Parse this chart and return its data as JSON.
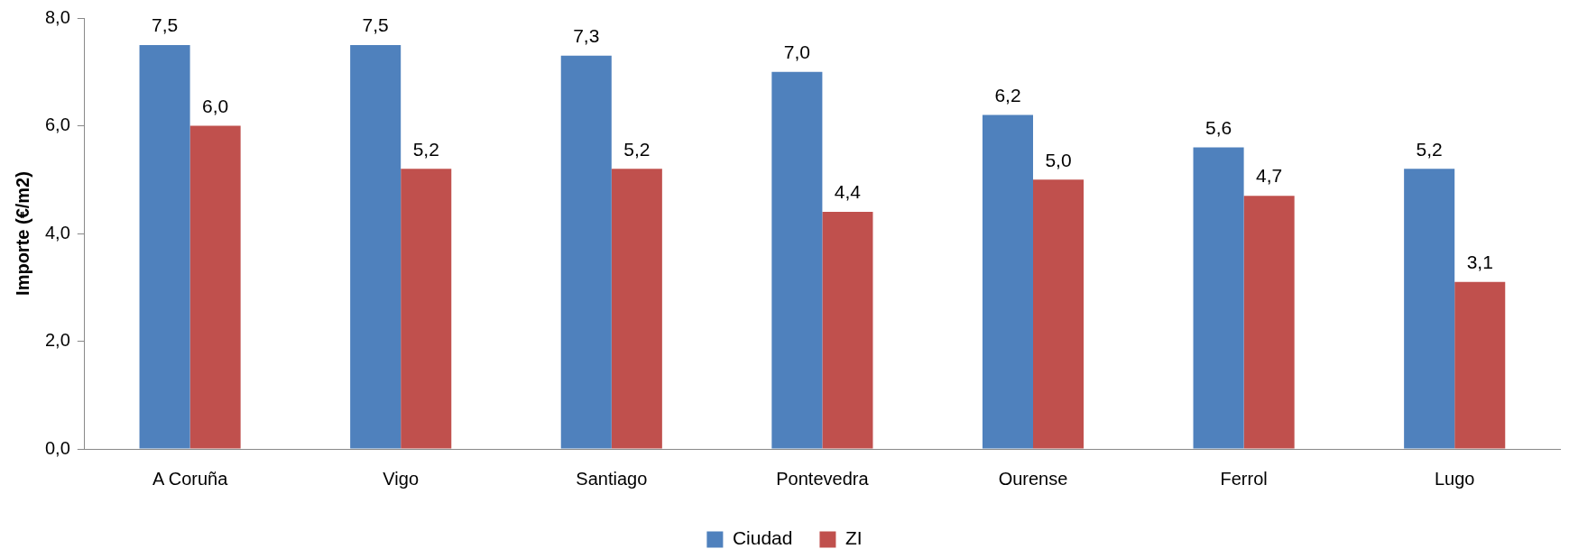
{
  "chart_data": {
    "type": "bar",
    "ylabel": "Importe (€/m2)",
    "categories": [
      "A Coruña",
      "Vigo",
      "Santiago",
      "Pontevedra",
      "Ourense",
      "Ferrol",
      "Lugo"
    ],
    "series": [
      {
        "name": "Ciudad",
        "color": "#4f81bd",
        "values": [
          7.5,
          7.5,
          7.3,
          7.0,
          6.2,
          5.6,
          5.2
        ],
        "value_labels": [
          "7,5",
          "7,5",
          "7,3",
          "7,0",
          "6,2",
          "5,6",
          "5,2"
        ]
      },
      {
        "name": "ZI",
        "color": "#c0504d",
        "values": [
          6.0,
          5.2,
          5.2,
          4.4,
          5.0,
          4.7,
          3.1
        ],
        "value_labels": [
          "6,0",
          "5,2",
          "5,2",
          "4,4",
          "5,0",
          "4,7",
          "3,1"
        ]
      }
    ],
    "ylim": [
      0,
      8
    ],
    "yticks": [
      {
        "value": 0,
        "label": "0,0"
      },
      {
        "value": 2,
        "label": "2,0"
      },
      {
        "value": 4,
        "label": "4,0"
      },
      {
        "value": 6,
        "label": "6,0"
      },
      {
        "value": 8,
        "label": "8,0"
      }
    ],
    "grid": false,
    "legend": "bottom"
  }
}
